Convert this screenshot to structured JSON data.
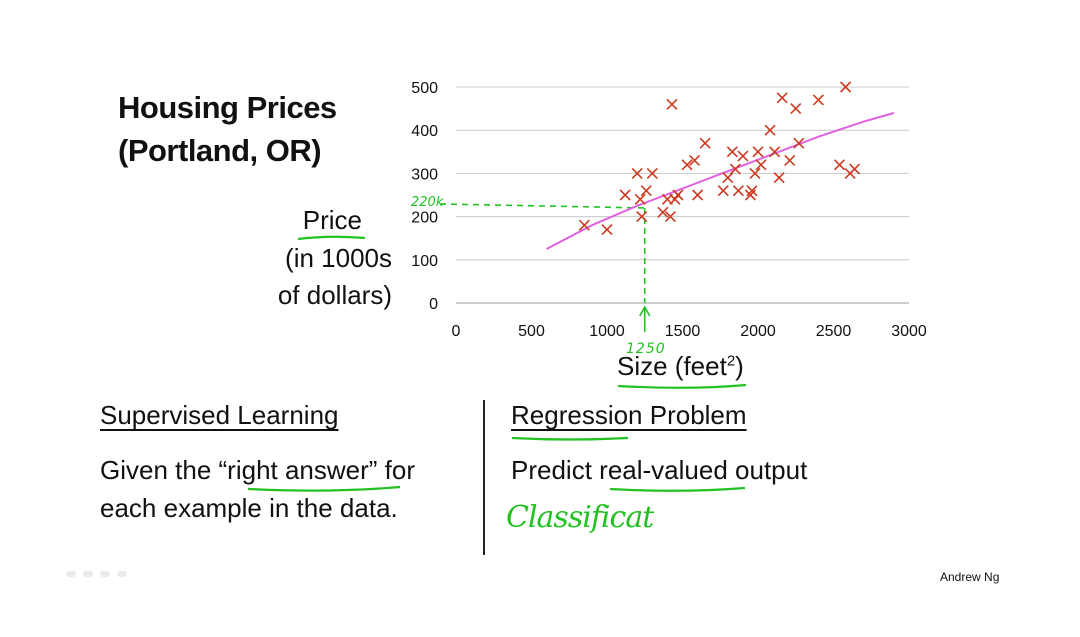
{
  "title": {
    "line1": "Housing Prices",
    "line2": "(Portland, OR)"
  },
  "y_label": {
    "line1": "Price",
    "line2": "(in 1000s",
    "line3": "of dollars)"
  },
  "x_label": {
    "text": "Size (feet",
    "sup": "2",
    "close": ")"
  },
  "left_section": {
    "heading": "Supervised Learning",
    "line1_pre": "Given the ",
    "line1_hl": "“right answer”",
    "line1_post": " for",
    "line2": "each example in the data."
  },
  "right_section": {
    "heading": "Regression Problem",
    "line1_pre": "Predict ",
    "line1_hl": "real-valued",
    "line1_post": " output",
    "handwritten": "Classificat"
  },
  "annotations": {
    "x_marker": "1250",
    "y_marker": "220k"
  },
  "author": "Andrew Ng",
  "colors": {
    "points": "#cc3b22",
    "fit_line": "#e060e0",
    "annotation": "#22c222",
    "grid": "#c8c8c8"
  },
  "chart_data": {
    "type": "scatter",
    "title": "Housing Prices (Portland, OR)",
    "xlabel": "Size (feet2)",
    "ylabel": "Price (in 1000s of dollars)",
    "xlim": [
      0,
      3000
    ],
    "ylim": [
      0,
      500
    ],
    "xticks": [
      0,
      500,
      1000,
      1500,
      2000,
      2500,
      3000
    ],
    "yticks": [
      0,
      100,
      200,
      300,
      400,
      500
    ],
    "grid": "horizontal",
    "x": [
      850,
      1000,
      1120,
      1200,
      1220,
      1230,
      1260,
      1300,
      1370,
      1400,
      1420,
      1430,
      1450,
      1470,
      1530,
      1580,
      1600,
      1650,
      1770,
      1800,
      1830,
      1850,
      1870,
      1900,
      1950,
      1960,
      1980,
      2000,
      2020,
      2080,
      2110,
      2140,
      2160,
      2210,
      2250,
      2270,
      2400,
      2540,
      2580,
      2610,
      2640
    ],
    "y": [
      180,
      170,
      250,
      300,
      240,
      200,
      260,
      300,
      210,
      240,
      200,
      460,
      240,
      250,
      320,
      330,
      250,
      370,
      260,
      290,
      350,
      310,
      260,
      340,
      250,
      260,
      300,
      350,
      320,
      400,
      350,
      290,
      475,
      330,
      450,
      370,
      470,
      320,
      500,
      300,
      310
    ],
    "fit_line": {
      "x": [
        600,
        900,
        1200,
        1500,
        1800,
        2100,
        2400,
        2700,
        2900
      ],
      "y": [
        125,
        180,
        225,
        265,
        305,
        345,
        385,
        420,
        440
      ]
    }
  }
}
